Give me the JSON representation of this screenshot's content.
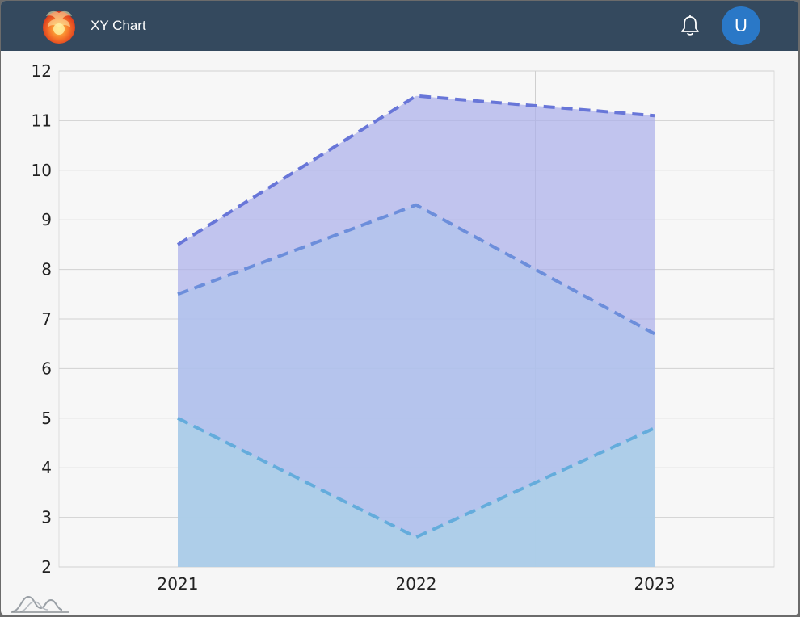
{
  "app": {
    "title": "XY Chart",
    "user_initial": "U",
    "icons": {
      "logo": "phoenix-logo-icon",
      "notifications": "bell-icon",
      "corner": "chart-curves-icon"
    }
  },
  "colors": {
    "appbar": "#34495e",
    "avatar": "#2a78c7",
    "series_line": [
      "#6876d8",
      "#6c8edb",
      "#64acdc"
    ],
    "series_fill": [
      "#a9aee9",
      "#afc5ec",
      "#abd3e7"
    ]
  },
  "chart_data": {
    "type": "area",
    "stacked": false,
    "line_style": "dashed",
    "x": [
      "2021",
      "2022",
      "2023"
    ],
    "series": [
      {
        "values": [
          8.5,
          11.5,
          11.1
        ]
      },
      {
        "values": [
          7.5,
          9.3,
          6.7
        ]
      },
      {
        "values": [
          5.0,
          2.6,
          4.8
        ]
      }
    ],
    "ylim": [
      2,
      12
    ],
    "yticks": [
      "2",
      "3",
      "4",
      "5",
      "6",
      "7",
      "8",
      "9",
      "10",
      "11",
      "12"
    ],
    "grid": true,
    "legend": "none"
  }
}
